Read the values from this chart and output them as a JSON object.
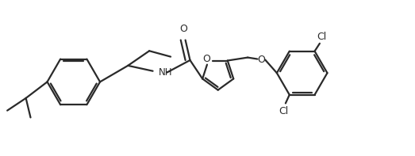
{
  "background_color": "#ffffff",
  "line_color": "#2a2a2a",
  "line_width": 1.6,
  "figsize": [
    5.23,
    1.97
  ],
  "dpi": 100,
  "xlim": [
    0,
    10.5
  ],
  "ylim": [
    0.2,
    4.2
  ]
}
